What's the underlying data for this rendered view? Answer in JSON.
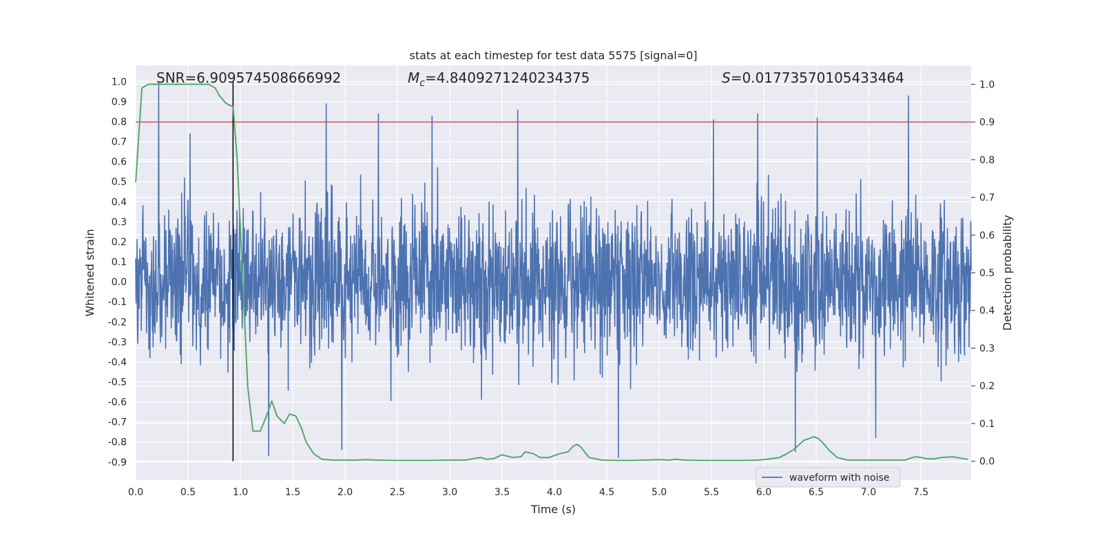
{
  "chart_data": {
    "type": "line",
    "title": "stats at each timestep for test data 5575 [signal=0]",
    "xlabel": "Time (s)",
    "ylabel_left": "Whitened strain",
    "ylabel_right": "Detection probability",
    "xlim": [
      0.0,
      7.98
    ],
    "ylim_left": [
      -0.99,
      1.08
    ],
    "ylim_right": [
      -0.05,
      1.05
    ],
    "x_ticks": [
      "0.0",
      "0.5",
      "1.0",
      "1.5",
      "2.0",
      "2.5",
      "3.0",
      "3.5",
      "4.0",
      "4.5",
      "5.0",
      "5.5",
      "6.0",
      "6.5",
      "7.0",
      "7.5"
    ],
    "y_left_ticks": [
      "-0.9",
      "-0.8",
      "-0.7",
      "-0.6",
      "-0.5",
      "-0.4",
      "-0.3",
      "-0.2",
      "-0.1",
      "0.0",
      "0.1",
      "0.2",
      "0.3",
      "0.4",
      "0.5",
      "0.6",
      "0.7",
      "0.8",
      "0.9",
      "1.0"
    ],
    "y_right_ticks": [
      "0.0",
      "0.1",
      "0.2",
      "0.3",
      "0.4",
      "0.5",
      "0.6",
      "0.7",
      "0.8",
      "0.9",
      "1.0"
    ],
    "grid": true,
    "legend_position": "bottom-right",
    "stats": {
      "snr_label": "SNR=6.909574508666992",
      "mc_symbol": "M",
      "mc_subscript": "c",
      "mc_value": "=4.8409271240234375",
      "s_symbol": "S",
      "s_value": "=0.01773570105433464"
    },
    "threshold_right": 0.9,
    "vertical_marker_x": 0.93,
    "series": [
      {
        "name": "waveform with noise",
        "axis": "left",
        "color": "#4c72b0",
        "description_range": [
          -0.87,
          1.0
        ],
        "peaks": [
          {
            "x": 0.22,
            "y": 1.0
          },
          {
            "x": 0.52,
            "y": 0.74
          },
          {
            "x": 1.82,
            "y": 0.89
          },
          {
            "x": 2.32,
            "y": 0.84
          },
          {
            "x": 2.83,
            "y": 0.83
          },
          {
            "x": 3.65,
            "y": 0.86
          },
          {
            "x": 5.52,
            "y": 0.81
          },
          {
            "x": 5.94,
            "y": 0.84
          },
          {
            "x": 6.51,
            "y": 0.82
          },
          {
            "x": 7.38,
            "y": 0.93
          }
        ],
        "troughs": [
          {
            "x": 1.27,
            "y": -0.87
          },
          {
            "x": 1.97,
            "y": -0.84
          },
          {
            "x": 4.61,
            "y": -0.88
          },
          {
            "x": 6.3,
            "y": -0.85
          },
          {
            "x": 7.07,
            "y": -0.78
          }
        ]
      },
      {
        "name": "detection probability",
        "axis": "right",
        "color": "#55a868",
        "x": [
          0.0,
          0.06,
          0.12,
          0.2,
          0.3,
          0.5,
          0.7,
          0.76,
          0.8,
          0.86,
          0.93,
          0.97,
          1.02,
          1.07,
          1.12,
          1.19,
          1.25,
          1.3,
          1.35,
          1.42,
          1.47,
          1.53,
          1.58,
          1.63,
          1.7,
          1.78,
          1.88,
          2.0,
          2.1,
          2.2,
          2.3,
          2.45,
          2.6,
          2.8,
          3.0,
          3.15,
          3.25,
          3.3,
          3.35,
          3.42,
          3.5,
          3.6,
          3.68,
          3.72,
          3.8,
          3.86,
          3.95,
          4.05,
          4.13,
          4.18,
          4.22,
          4.26,
          4.33,
          4.45,
          4.6,
          4.75,
          5.0,
          5.1,
          5.15,
          5.25,
          5.4,
          5.6,
          5.8,
          5.95,
          6.05,
          6.15,
          6.22,
          6.28,
          6.33,
          6.38,
          6.43,
          6.48,
          6.52,
          6.56,
          6.62,
          6.7,
          6.8,
          7.0,
          7.15,
          7.3,
          7.35,
          7.4,
          7.45,
          7.5,
          7.55,
          7.62,
          7.7,
          7.8,
          7.88,
          7.95
        ],
        "y": [
          0.74,
          0.99,
          1.0,
          1.0,
          1.0,
          1.0,
          1.0,
          0.99,
          0.97,
          0.95,
          0.94,
          0.8,
          0.5,
          0.2,
          0.08,
          0.08,
          0.12,
          0.16,
          0.12,
          0.1,
          0.125,
          0.12,
          0.09,
          0.05,
          0.02,
          0.005,
          0.003,
          0.003,
          0.003,
          0.004,
          0.003,
          0.002,
          0.002,
          0.002,
          0.003,
          0.003,
          0.008,
          0.01,
          0.005,
          0.007,
          0.017,
          0.01,
          0.012,
          0.025,
          0.02,
          0.01,
          0.01,
          0.02,
          0.025,
          0.04,
          0.045,
          0.035,
          0.01,
          0.003,
          0.002,
          0.002,
          0.004,
          0.003,
          0.005,
          0.003,
          0.002,
          0.002,
          0.002,
          0.003,
          0.006,
          0.01,
          0.02,
          0.03,
          0.042,
          0.055,
          0.06,
          0.065,
          0.06,
          0.05,
          0.03,
          0.01,
          0.003,
          0.003,
          0.003,
          0.003,
          0.003,
          0.008,
          0.012,
          0.01,
          0.007,
          0.006,
          0.01,
          0.012,
          0.008,
          0.005
        ]
      }
    ]
  }
}
